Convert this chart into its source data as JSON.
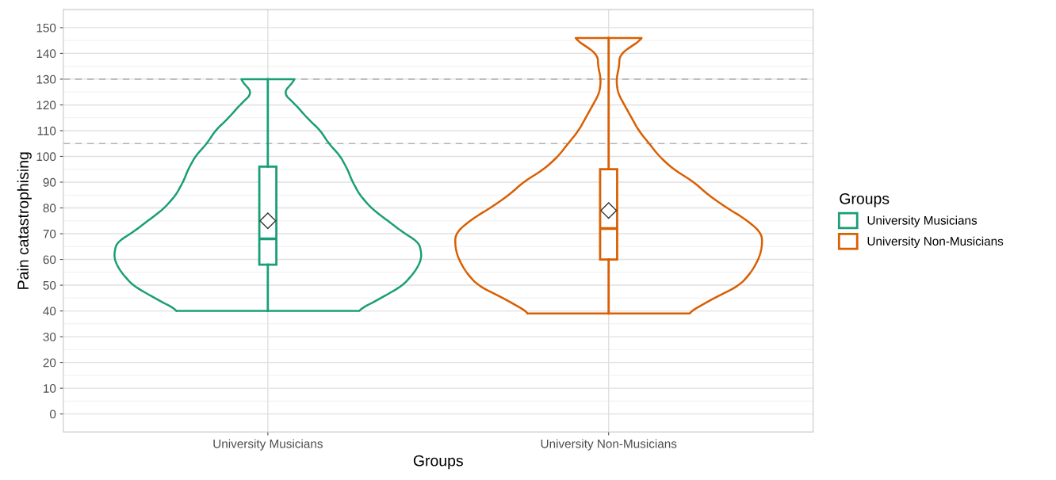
{
  "chart_data": {
    "type": "box",
    "xlabel": "Groups",
    "ylabel": "Pain catastrophising",
    "legend_title": "Groups",
    "legend": "right",
    "grid": true,
    "categories": [
      "University Musicians",
      "University Non-Musicians"
    ],
    "ylim": [
      -7,
      157
    ],
    "yticks": [
      0,
      10,
      20,
      30,
      40,
      50,
      60,
      70,
      80,
      90,
      100,
      110,
      120,
      130,
      140,
      150
    ],
    "marker": "diamond",
    "ref_lines": [
      {
        "axis": "y",
        "value": 105,
        "color": "#b3b3b3",
        "line_style": "dashed"
      },
      {
        "axis": "y",
        "value": 130,
        "color": "#b3b3b3",
        "line_style": "dashed"
      }
    ],
    "series": [
      {
        "name": "University Musicians",
        "color": "#1b9e77",
        "boxes": [
          {
            "low": 40,
            "q1": 58,
            "median": 68,
            "q3": 96,
            "high": 130,
            "mean": 75
          },
          null
        ]
      },
      {
        "name": "University Non-Musicians",
        "color": "#d95f02",
        "boxes": [
          null,
          {
            "low": 39,
            "q1": 60,
            "median": 72,
            "q3": 95,
            "high": 146,
            "mean": 79
          }
        ]
      }
    ]
  }
}
